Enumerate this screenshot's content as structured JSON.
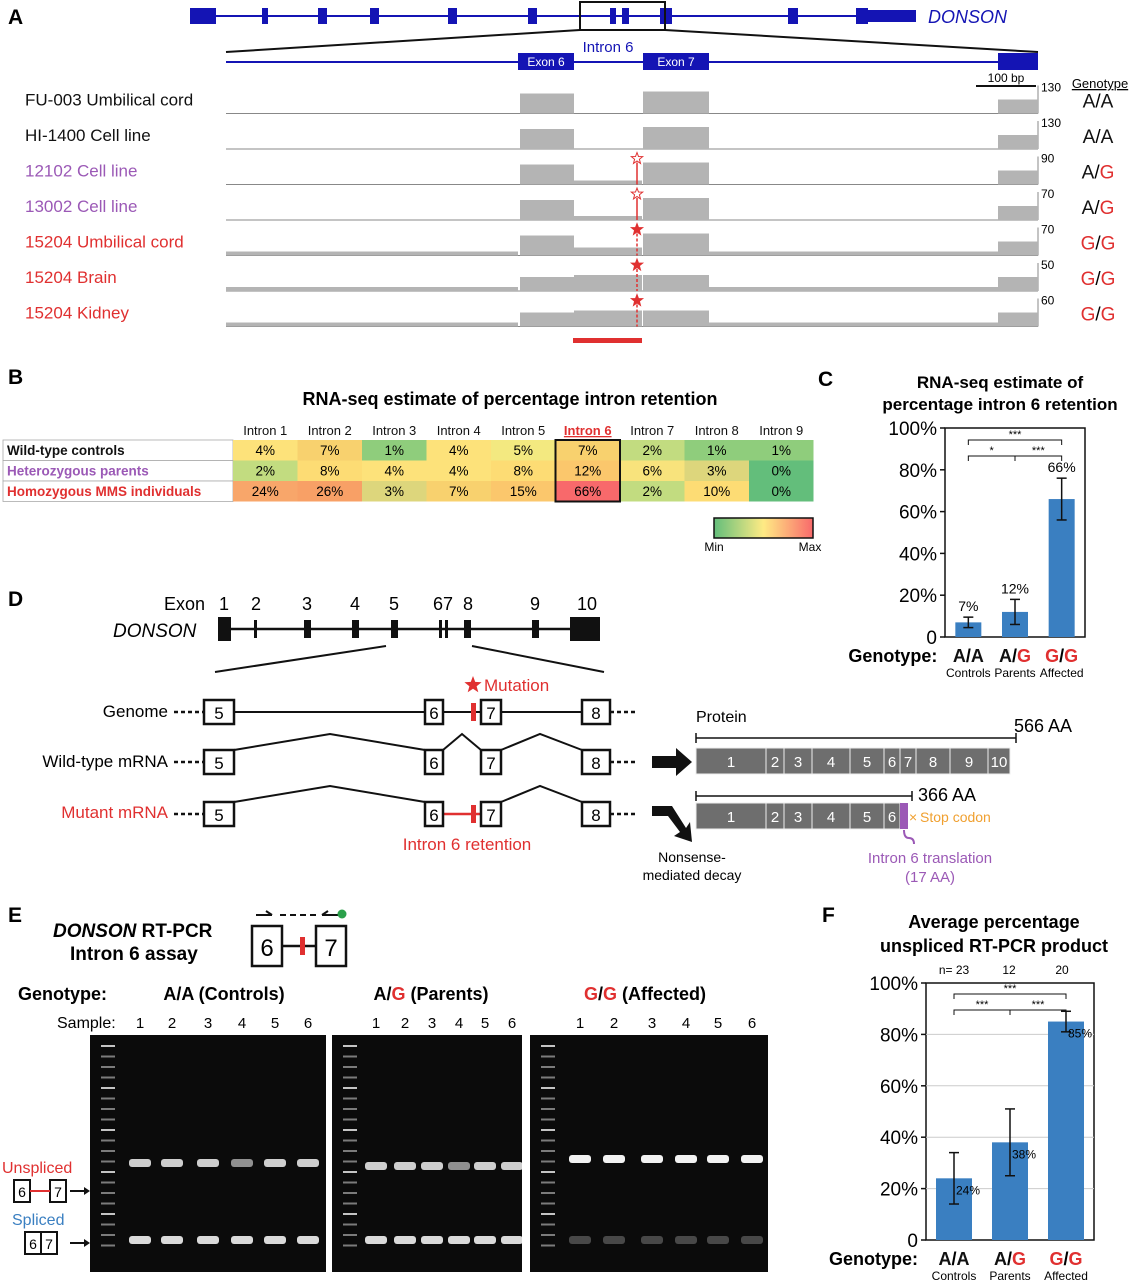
{
  "colors": {
    "gene_blue": "#1414b4",
    "purple": "#9b59b6",
    "red": "#e03030",
    "bar_blue": "#3a7fc1",
    "track_gray": "#b4b4b4",
    "stop_orange": "#f0a030",
    "spliced_blue": "#3a7fc1"
  },
  "panel_a": {
    "letter": "A",
    "gene": "DONSON",
    "intron_label": "Intron 6",
    "exon6": "Exon 6",
    "exon7": "Exon 7",
    "scale": "100 bp",
    "genotype_header": "Genotype",
    "tracks": [
      {
        "label": "FU-003 Umbilical cord",
        "max": "130",
        "g1": "A",
        "g2": "A",
        "color": "black"
      },
      {
        "label": "HI-1400 Cell line",
        "max": "130",
        "g1": "A",
        "g2": "A",
        "color": "black"
      },
      {
        "label": "12102 Cell line",
        "max": "90",
        "g1": "A",
        "g2": "G",
        "color": "purple"
      },
      {
        "label": "13002 Cell line",
        "max": "70",
        "g1": "A",
        "g2": "G",
        "color": "purple"
      },
      {
        "label": "15204 Umbilical cord",
        "max": "70",
        "g1": "G",
        "g2": "G",
        "color": "red"
      },
      {
        "label": "15204 Brain",
        "max": "50",
        "g1": "G",
        "g2": "G",
        "color": "red"
      },
      {
        "label": "15204 Kidney",
        "max": "60",
        "g1": "G",
        "g2": "G",
        "color": "red"
      }
    ]
  },
  "panel_b": {
    "letter": "B",
    "title": "RNA-seq estimate of percentage intron retention",
    "columns": [
      "Intron 1",
      "Intron 2",
      "Intron 3",
      "Intron 4",
      "Intron 5",
      "Intron 6",
      "Intron 7",
      "Intron 8",
      "Intron 9"
    ],
    "rows": [
      {
        "label": "Wild-type controls",
        "color": "black",
        "values": [
          "4%",
          "7%",
          "1%",
          "4%",
          "5%",
          "7%",
          "2%",
          "1%",
          "1%"
        ],
        "colors": [
          "#fde27a",
          "#f8d16e",
          "#8fcd7c",
          "#fde27a",
          "#f3e980",
          "#f8d16e",
          "#c2dc80",
          "#8fcd7c",
          "#8fcd7c"
        ]
      },
      {
        "label": "Heterozygous parents",
        "color": "purple",
        "values": [
          "2%",
          "8%",
          "4%",
          "4%",
          "8%",
          "12%",
          "6%",
          "3%",
          "0%"
        ],
        "colors": [
          "#c2dc80",
          "#fddc74",
          "#fde27a",
          "#fde27a",
          "#fddc74",
          "#fbc76c",
          "#f8e37c",
          "#ddd67c",
          "#63be7b"
        ]
      },
      {
        "label": "Homozygous MMS individuals",
        "color": "red",
        "values": [
          "24%",
          "26%",
          "3%",
          "7%",
          "15%",
          "66%",
          "2%",
          "10%",
          "0%"
        ],
        "colors": [
          "#f8a66a",
          "#f8a066",
          "#ddd67c",
          "#f8d16e",
          "#fbc76c",
          "#f8696b",
          "#c2dc80",
          "#fddc74",
          "#63be7b"
        ]
      }
    ],
    "legend_min": "Min",
    "legend_max": "Max"
  },
  "panel_c": {
    "letter": "C",
    "title_line1": "RNA-seq estimate of",
    "title_line2": "percentage intron 6 retention",
    "y_ticks": [
      "0",
      "20%",
      "40%",
      "60%",
      "80%",
      "100%"
    ],
    "genotype_label": "Genotype:",
    "sig": [
      "***",
      "*",
      "***"
    ],
    "chart_data": {
      "type": "bar",
      "title": "RNA-seq estimate of percentage intron 6 retention",
      "categories": [
        "A/A",
        "A/G",
        "G/G"
      ],
      "sublabels": [
        "Controls",
        "Parents",
        "Affected"
      ],
      "values": [
        7,
        12,
        66
      ],
      "value_labels": [
        "7%",
        "12%",
        "66%"
      ],
      "errors": [
        2.5,
        6,
        10
      ],
      "ylim": [
        0,
        100
      ]
    }
  },
  "panel_d": {
    "letter": "D",
    "exon_word": "Exon",
    "gene": "DONSON",
    "exon_nums": [
      "1",
      "2",
      "3",
      "4",
      "5",
      "67",
      "8",
      "9",
      "10"
    ],
    "mutation": "Mutation",
    "genome": "Genome",
    "wt_mrna": "Wild-type mRNA",
    "mut_mrna": "Mutant mRNA",
    "intron_retention": "Intron 6 retention",
    "nmd_line1": "Nonsense-",
    "nmd_line2": "mediated decay",
    "protein": "Protein",
    "wt_aa": "566 AA",
    "mut_aa": "366 AA",
    "stop": "Stop codon",
    "translation_line1": "Intron 6 translation",
    "translation_line2": "(17 AA)",
    "wt_segments": [
      "1",
      "2",
      "3",
      "4",
      "5",
      "6",
      "7",
      "8",
      "9",
      "10"
    ],
    "mut_segments": [
      "1",
      "2",
      "3",
      "4",
      "5",
      "6"
    ],
    "box5": "5",
    "box6": "6",
    "box7": "7",
    "box8": "8"
  },
  "panel_e": {
    "letter": "E",
    "title_gene": "DONSON",
    "title_rest": " RT-PCR",
    "title_line2": "Intron 6 assay",
    "genotype_label": "Genotype:",
    "group1": "A/A (Controls)",
    "group2_a": "A/",
    "group2_g": "G",
    "group2_rest": " (Parents)",
    "group3_g1": "G",
    "group3_sep": "/",
    "group3_g2": "G",
    "group3_rest": " (Affected)",
    "sample_label": "Sample:",
    "samples": [
      "1",
      "2",
      "3",
      "4",
      "5",
      "6"
    ],
    "unspliced": "Unspliced",
    "spliced": "Spliced",
    "box6": "6",
    "box7": "7"
  },
  "panel_f": {
    "letter": "F",
    "title_line1": "Average percentage",
    "title_line2": "unspliced RT-PCR product",
    "n_label": "n= 23",
    "n2": "12",
    "n3": "20",
    "y_ticks": [
      "0",
      "20%",
      "40%",
      "60%",
      "80%",
      "100%"
    ],
    "genotype_label": "Genotype:",
    "sig": [
      "***",
      "***",
      "***"
    ],
    "chart_data": {
      "type": "bar",
      "title": "Average percentage unspliced RT-PCR product",
      "categories": [
        "A/A",
        "A/G",
        "G/G"
      ],
      "sublabels": [
        "Controls",
        "Parents",
        "Affected"
      ],
      "n": [
        23,
        12,
        20
      ],
      "values": [
        24,
        38,
        85
      ],
      "value_labels": [
        "24%",
        "38%",
        "85%"
      ],
      "errors": [
        10,
        13,
        4
      ],
      "ylim": [
        0,
        100
      ]
    }
  }
}
